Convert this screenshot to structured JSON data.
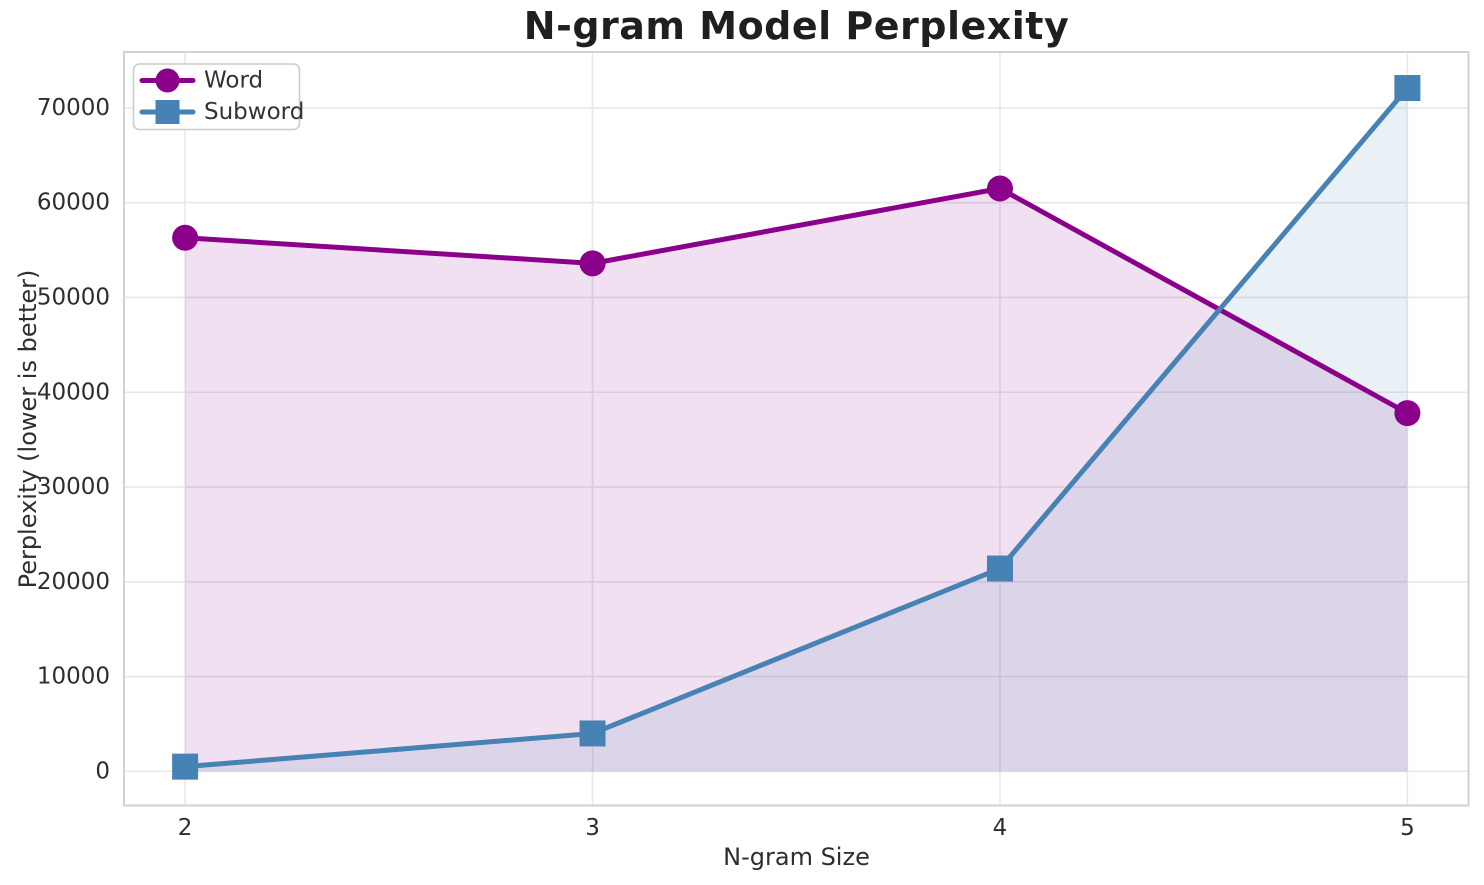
{
  "chart_data": {
    "type": "line",
    "title": "N-gram Model Perplexity",
    "xlabel": "N-gram Size",
    "ylabel": "Perplexity (lower is better)",
    "x": [
      2,
      3,
      4,
      5
    ],
    "series": [
      {
        "name": "Word",
        "color": "#8B008B",
        "marker": "circle",
        "values": [
          56300,
          53600,
          61500,
          37800
        ]
      },
      {
        "name": "Subword",
        "color": "#4682B4",
        "marker": "square",
        "values": [
          500,
          4000,
          21400,
          72100
        ]
      }
    ],
    "xticks": [
      2,
      3,
      4,
      5
    ],
    "yticks": [
      0,
      10000,
      20000,
      30000,
      40000,
      50000,
      60000,
      70000
    ],
    "xlim": [
      1.85,
      5.15
    ],
    "ylim": [
      -3600,
      75900
    ],
    "grid": true,
    "area_fill_to_zero": true,
    "fill_opacity": 0.12,
    "legend_position": "upper-left",
    "colors": {
      "grid": "#e8e8e8",
      "spine": "#d2d2d2",
      "tick_text": "#2e2e2e",
      "legend_text": "#333333",
      "legend_border": "#cccccc",
      "background": "#ffffff"
    }
  }
}
